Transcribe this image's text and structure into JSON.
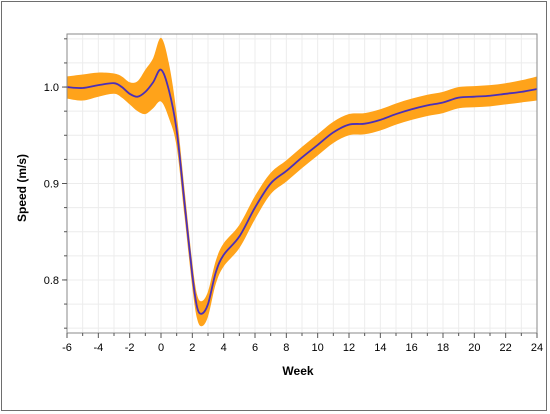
{
  "chart_data": {
    "type": "line",
    "title": "",
    "xlabel": "Week",
    "ylabel": "Speed (m/s)",
    "xlim": [
      -6,
      24
    ],
    "ylim": [
      0.745,
      1.055
    ],
    "x_ticks": [
      -6,
      -4,
      -2,
      0,
      2,
      4,
      6,
      8,
      10,
      12,
      14,
      16,
      18,
      20,
      22,
      24
    ],
    "y_ticks": [
      0.8,
      0.9,
      1.0
    ],
    "y_tick_labels": [
      "0.8",
      "0.9",
      "1.0"
    ],
    "grid": true,
    "band_color": "#ffa31a",
    "line_color": "#4b2fb8",
    "series": [
      {
        "x": [
          -6,
          -5,
          -4,
          -3,
          -2.5,
          -2,
          -1.5,
          -1,
          -0.5,
          0,
          0.5,
          1,
          1.5,
          2,
          2.3,
          2.6,
          3,
          3.5,
          4,
          5,
          6,
          7,
          8,
          9,
          10,
          11,
          12,
          13,
          14,
          15,
          16,
          17,
          18,
          19,
          20,
          21,
          22,
          23,
          24
        ],
        "y": [
          1.0,
          0.999,
          1.002,
          1.004,
          1.0,
          0.993,
          0.99,
          0.995,
          1.005,
          1.018,
          0.997,
          0.955,
          0.88,
          0.805,
          0.772,
          0.765,
          0.775,
          0.808,
          0.826,
          0.845,
          0.875,
          0.9,
          0.913,
          0.927,
          0.94,
          0.953,
          0.961,
          0.962,
          0.966,
          0.972,
          0.977,
          0.981,
          0.984,
          0.989,
          0.99,
          0.991,
          0.993,
          0.995,
          0.998
        ],
        "upper": [
          1.011,
          1.013,
          1.015,
          1.014,
          1.011,
          1.005,
          1.006,
          1.018,
          1.03,
          1.051,
          1.025,
          0.972,
          0.894,
          0.818,
          0.785,
          0.778,
          0.788,
          0.82,
          0.838,
          0.857,
          0.887,
          0.911,
          0.924,
          0.938,
          0.951,
          0.964,
          0.972,
          0.973,
          0.977,
          0.983,
          0.988,
          0.992,
          0.995,
          1.0,
          1.001,
          1.002,
          1.004,
          1.007,
          1.011
        ],
        "lower": [
          0.988,
          0.986,
          0.99,
          0.993,
          0.989,
          0.982,
          0.975,
          0.972,
          0.978,
          0.985,
          0.968,
          0.938,
          0.866,
          0.792,
          0.76,
          0.752,
          0.762,
          0.796,
          0.814,
          0.833,
          0.863,
          0.889,
          0.902,
          0.916,
          0.929,
          0.942,
          0.95,
          0.951,
          0.955,
          0.961,
          0.966,
          0.97,
          0.973,
          0.978,
          0.979,
          0.98,
          0.982,
          0.984,
          0.986
        ]
      }
    ]
  }
}
